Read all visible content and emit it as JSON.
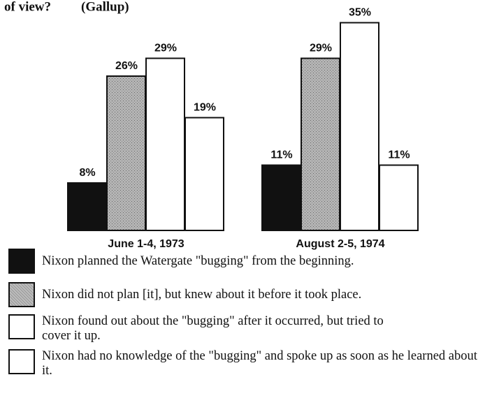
{
  "chart_data": {
    "type": "bar",
    "title": "of view?",
    "source": "(Gallup)",
    "categories": [
      "June 1-4, 1973",
      "August 2-5, 1974"
    ],
    "series": [
      {
        "name": "Nixon planned the Watergate \"bugging\" from the beginning.",
        "color": "#111111",
        "values": [
          8,
          11
        ],
        "value_labels": [
          "8%",
          "11%"
        ]
      },
      {
        "name": "Nixon did not plan [it], but knew about it before it took place.",
        "color": "#b4b4b4",
        "values": [
          26,
          29
        ],
        "value_labels": [
          "26%",
          "29%"
        ]
      },
      {
        "name": "Nixon found out about the \"bugging\" after it occurred, but tried to cover it up.",
        "color": "#ffffff",
        "values": [
          29,
          35
        ],
        "value_labels": [
          "29%",
          "35%"
        ]
      },
      {
        "name": "Nixon had no knowledge of the \"bugging\" and spoke up as soon as he learned about it.",
        "color": "#ffffff",
        "values": [
          19,
          11
        ],
        "value_labels": [
          "19%",
          "11%"
        ]
      }
    ]
  }
}
